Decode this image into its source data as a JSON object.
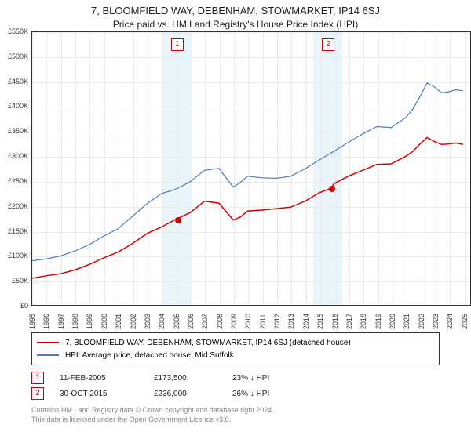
{
  "title_line_1": "7, BLOOMFIELD WAY, DEBENHAM, STOWMARKET, IP14 6SJ",
  "title_line_2": "Price paid vs. HM Land Registry's House Price Index (HPI)",
  "chart": {
    "type": "line",
    "x_range": [
      1995,
      2025.5
    ],
    "y_range": [
      0,
      550
    ],
    "y_ticks": [
      0,
      50,
      100,
      150,
      200,
      250,
      300,
      350,
      400,
      450,
      500,
      550
    ],
    "y_tick_labels": [
      "£0",
      "£50K",
      "£100K",
      "£150K",
      "£200K",
      "£250K",
      "£300K",
      "£350K",
      "£400K",
      "£450K",
      "£500K",
      "£550K"
    ],
    "x_ticks": [
      1995,
      1996,
      1997,
      1998,
      1999,
      2000,
      2001,
      2002,
      2003,
      2004,
      2005,
      2006,
      2007,
      2008,
      2009,
      2010,
      2011,
      2012,
      2013,
      2014,
      2015,
      2016,
      2017,
      2018,
      2019,
      2020,
      2021,
      2022,
      2023,
      2024,
      2025
    ],
    "grid_color": "#ececec",
    "border_color": "#333333",
    "background_color": "#ffffff",
    "band_color": "rgba(173,216,230,0.25)",
    "bands": [
      {
        "from": 2004.0,
        "to": 2006.0
      },
      {
        "from": 2014.5,
        "to": 2016.5
      }
    ],
    "markers": [
      {
        "label": "1",
        "x": 2005.0,
        "color": "#cc0000"
      },
      {
        "label": "2",
        "x": 2015.5,
        "color": "#cc0000"
      }
    ],
    "series": [
      {
        "name": "property",
        "color": "#d40000",
        "width": 1.5,
        "points": [
          [
            1995,
            55
          ],
          [
            1996,
            60
          ],
          [
            1997,
            64
          ],
          [
            1998,
            72
          ],
          [
            1999,
            83
          ],
          [
            2000,
            96
          ],
          [
            2001,
            108
          ],
          [
            2002,
            125
          ],
          [
            2003,
            145
          ],
          [
            2004,
            158
          ],
          [
            2005,
            173.5
          ],
          [
            2006,
            187
          ],
          [
            2007,
            210
          ],
          [
            2008,
            206
          ],
          [
            2009,
            172
          ],
          [
            2009.5,
            178
          ],
          [
            2010,
            190
          ],
          [
            2011,
            192
          ],
          [
            2012,
            195
          ],
          [
            2013,
            198
          ],
          [
            2014,
            210
          ],
          [
            2015,
            227
          ],
          [
            2015.83,
            236
          ],
          [
            2016,
            245
          ],
          [
            2017,
            260
          ],
          [
            2018,
            272
          ],
          [
            2019,
            284
          ],
          [
            2020,
            285
          ],
          [
            2021,
            300
          ],
          [
            2021.5,
            310
          ],
          [
            2022,
            325
          ],
          [
            2022.5,
            338
          ],
          [
            2023,
            330
          ],
          [
            2023.5,
            324
          ],
          [
            2024,
            325
          ],
          [
            2024.5,
            327
          ],
          [
            2025,
            324
          ]
        ]
      },
      {
        "name": "hpi",
        "color": "#4a7cc0",
        "width": 1.2,
        "points": [
          [
            1995,
            90
          ],
          [
            1996,
            94
          ],
          [
            1997,
            100
          ],
          [
            1998,
            110
          ],
          [
            1999,
            123
          ],
          [
            2000,
            140
          ],
          [
            2001,
            155
          ],
          [
            2002,
            180
          ],
          [
            2003,
            205
          ],
          [
            2004,
            225
          ],
          [
            2005,
            234
          ],
          [
            2006,
            249
          ],
          [
            2007,
            272
          ],
          [
            2008,
            276
          ],
          [
            2009,
            238
          ],
          [
            2009.5,
            248
          ],
          [
            2010,
            260
          ],
          [
            2011,
            257
          ],
          [
            2012,
            256
          ],
          [
            2013,
            260
          ],
          [
            2014,
            275
          ],
          [
            2015,
            293
          ],
          [
            2016,
            310
          ],
          [
            2017,
            328
          ],
          [
            2018,
            345
          ],
          [
            2019,
            360
          ],
          [
            2020,
            358
          ],
          [
            2021,
            378
          ],
          [
            2021.5,
            395
          ],
          [
            2022,
            420
          ],
          [
            2022.5,
            448
          ],
          [
            2023,
            440
          ],
          [
            2023.5,
            428
          ],
          [
            2024,
            430
          ],
          [
            2024.5,
            434
          ],
          [
            2025,
            432
          ]
        ]
      }
    ],
    "sale_points": [
      {
        "label": "1",
        "x": 2005.12,
        "y": 173.5,
        "color": "#d40000"
      },
      {
        "label": "2",
        "x": 2015.83,
        "y": 236,
        "color": "#d40000"
      }
    ]
  },
  "legend": {
    "border_color": "#333333",
    "items": [
      {
        "label": "7, BLOOMFIELD WAY, DEBENHAM, STOWMARKET, IP14 6SJ (detached house)",
        "color": "#d40000"
      },
      {
        "label": "HPI: Average price, detached house, Mid Suffolk",
        "color": "#4a7cc0"
      }
    ]
  },
  "sales": [
    {
      "badge": "1",
      "date": "11-FEB-2005",
      "price": "£173,500",
      "delta": "23% ↓ HPI"
    },
    {
      "badge": "2",
      "date": "30-OCT-2015",
      "price": "£236,000",
      "delta": "26% ↓ HPI"
    }
  ],
  "footer_line_1": "Contains HM Land Registry data © Crown copyright and database right 2024.",
  "footer_line_2": "This data is licensed under the Open Government Licence v3.0."
}
